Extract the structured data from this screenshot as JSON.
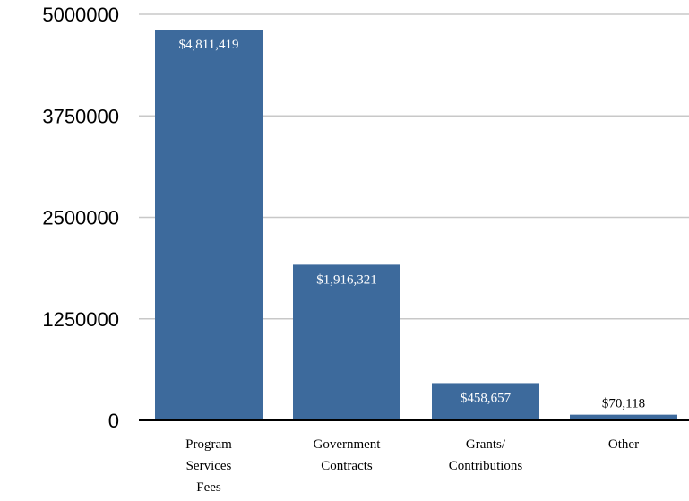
{
  "chart_data": {
    "type": "bar",
    "title": "",
    "xlabel": "",
    "ylabel": "",
    "ylim": [
      0,
      5000000
    ],
    "yticks": [
      "0",
      "1250000",
      "2500000",
      "3750000",
      "5000000"
    ],
    "categories": [
      [
        "Program",
        "Services",
        "Fees"
      ],
      [
        "Government",
        "Contracts"
      ],
      [
        "Grants/",
        "Contributions"
      ],
      [
        "Other"
      ]
    ],
    "values": [
      4811419,
      1916321,
      458657,
      70118
    ],
    "data_labels": [
      "$4,811,419",
      "$1,916,321",
      "$458,657",
      "$70,118"
    ],
    "grid": true,
    "legend": "none",
    "colors": {
      "bar": "#3d6a9c",
      "grid": "#c8c8c8",
      "axis": "#000000",
      "label_inside": "#ffffff",
      "label_outside": "#000000"
    }
  }
}
